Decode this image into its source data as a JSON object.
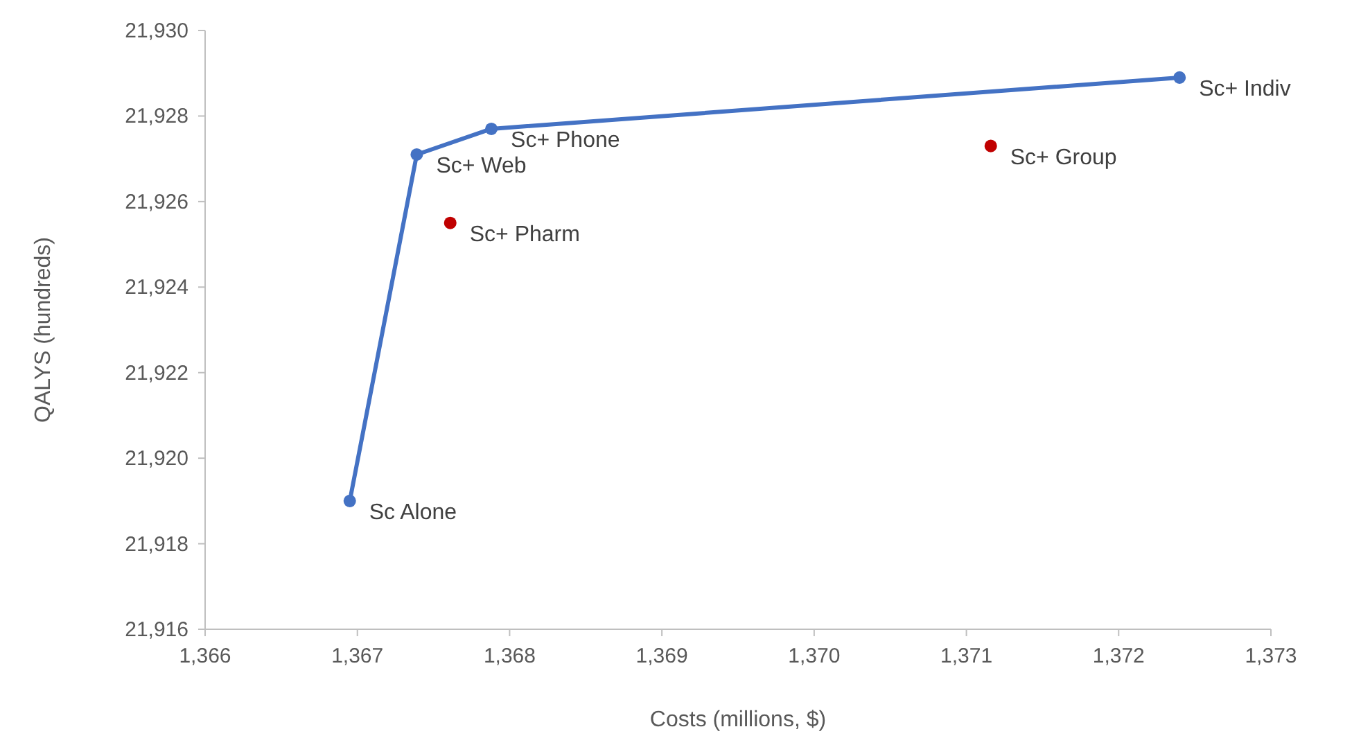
{
  "chart_data": {
    "type": "line",
    "xlabel": "Costs (millions, $)",
    "ylabel": "QALYS  (hundreds)",
    "xlim": [
      1366,
      1373
    ],
    "ylim": [
      21916,
      21930
    ],
    "xticks": [
      {
        "value": 1366,
        "label": "1,366"
      },
      {
        "value": 1367,
        "label": "1,367"
      },
      {
        "value": 1368,
        "label": "1,368"
      },
      {
        "value": 1369,
        "label": "1,369"
      },
      {
        "value": 1370,
        "label": "1,370"
      },
      {
        "value": 1371,
        "label": "1,371"
      },
      {
        "value": 1372,
        "label": "1,372"
      },
      {
        "value": 1373,
        "label": "1,373"
      }
    ],
    "yticks": [
      {
        "value": 21916,
        "label": "21,916"
      },
      {
        "value": 21918,
        "label": "21,918"
      },
      {
        "value": 21920,
        "label": "21,920"
      },
      {
        "value": 21922,
        "label": "21,922"
      },
      {
        "value": 21924,
        "label": "21,924"
      },
      {
        "value": 21926,
        "label": "21,926"
      },
      {
        "value": 21928,
        "label": "21,928"
      },
      {
        "value": 21930,
        "label": "21,930"
      }
    ],
    "grid": false,
    "marker": "circle",
    "line_style": "solid",
    "series": [
      {
        "type": "line",
        "color": "#4472c4",
        "x": [
          1366.95,
          1367.39,
          1367.88,
          1372.4
        ],
        "values": [
          21919.0,
          21927.1,
          21927.7,
          21928.9
        ]
      },
      {
        "type": "scatter",
        "color": "#c00000",
        "x": [
          1367.61,
          1371.16
        ],
        "values": [
          21925.5,
          21927.3
        ]
      }
    ],
    "annotations": [
      {
        "text": "Sc Alone",
        "x": 1366.95,
        "y": 21919.0
      },
      {
        "text": "Sc+ Web",
        "x": 1367.39,
        "y": 21927.1
      },
      {
        "text": "Sc+ Phone",
        "x": 1367.88,
        "y": 21927.7
      },
      {
        "text": "Sc+ Indiv",
        "x": 1372.4,
        "y": 21928.9
      },
      {
        "text": "Sc+ Pharm",
        "x": 1367.61,
        "y": 21925.5
      },
      {
        "text": "Sc+ Group",
        "x": 1371.16,
        "y": 21927.3
      }
    ]
  }
}
